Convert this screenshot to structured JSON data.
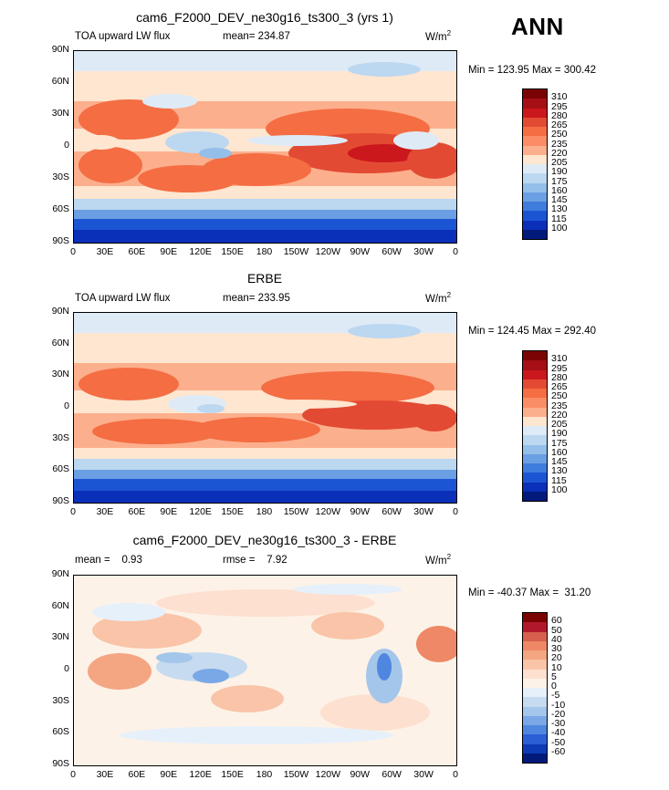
{
  "season": "ANN",
  "units": "W/m",
  "units_exp": "2",
  "lat_labels": [
    "90N",
    "60N",
    "30N",
    "0",
    "30S",
    "60S",
    "90S"
  ],
  "lon_labels": [
    "0",
    "30E",
    "60E",
    "90E",
    "120E",
    "150E",
    "180",
    "150W",
    "120W",
    "90W",
    "60W",
    "30W",
    "0"
  ],
  "panels": [
    {
      "title": "cam6_F2000_DEV_ne30g16_ts300_3 (yrs 1)",
      "left_label": "TOA upward LW flux",
      "center_label": "mean= 234.87",
      "minmax": "Min = 123.95 Max = 300.42",
      "levels": [
        "310",
        "295",
        "280",
        "265",
        "250",
        "235",
        "220",
        "205",
        "190",
        "175",
        "160",
        "145",
        "130",
        "115",
        "100"
      ],
      "kind": "abs"
    },
    {
      "title": "ERBE",
      "left_label": "TOA upward LW flux",
      "center_label": "mean= 233.95",
      "minmax": "Min = 124.45 Max = 292.40",
      "levels": [
        "310",
        "295",
        "280",
        "265",
        "250",
        "235",
        "220",
        "205",
        "190",
        "175",
        "160",
        "145",
        "130",
        "115",
        "100"
      ],
      "kind": "abs"
    },
    {
      "title": "cam6_F2000_DEV_ne30g16_ts300_3 - ERBE",
      "left_label": "mean =    0.93",
      "center_label": "rmse =    7.92",
      "minmax": "Min = -40.37 Max =  31.20",
      "levels": [
        "60",
        "50",
        "40",
        "30",
        "20",
        "10",
        "5",
        "0",
        "-5",
        "-10",
        "-20",
        "-30",
        "-40",
        "-50",
        "-60"
      ],
      "kind": "diff"
    }
  ],
  "colors": {
    "abs_scale": [
      "#7a0403",
      "#a50f15",
      "#cb181d",
      "#e34a33",
      "#f46d43",
      "#fb8d66",
      "#fcaf8c",
      "#fee6d0",
      "#deebf7",
      "#bcd7f0",
      "#94bfea",
      "#6b9fe3",
      "#3f7ddc",
      "#1c55d4",
      "#0a2fb8",
      "#021a7a"
    ],
    "diff_scale": [
      "#7a0403",
      "#b2182b",
      "#d6604d",
      "#ee8866",
      "#f4a582",
      "#f9c4a8",
      "#fde0cf",
      "#fdf2e8",
      "#e6f0fa",
      "#c6dbef",
      "#a3c6ea",
      "#7aa8e6",
      "#4f86df",
      "#2a5fd6",
      "#0d3bb5",
      "#021a7a"
    ]
  }
}
